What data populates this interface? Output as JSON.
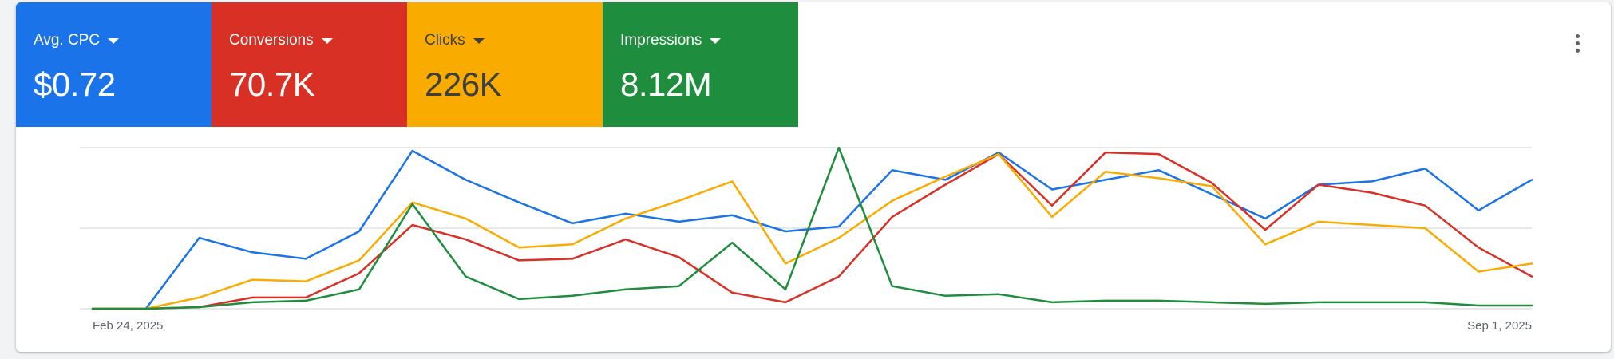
{
  "tiles": [
    {
      "label": "Avg. CPC",
      "value": "$0.72",
      "color": "#1a73e8"
    },
    {
      "label": "Conversions",
      "value": "70.7K",
      "color": "#d93025"
    },
    {
      "label": "Clicks",
      "value": "226K",
      "color": "#f9ab00"
    },
    {
      "label": "Impressions",
      "value": "8.12M",
      "color": "#1e8e3e"
    }
  ],
  "menu_icon": "more-vert-icon",
  "chart_data": {
    "type": "line",
    "x_start_label": "Feb 24, 2025",
    "x_end_label": "Sep 1, 2025",
    "ylim": [
      0,
      100
    ],
    "grid": true,
    "series": [
      {
        "metric": "Avg. CPC",
        "color": "#1a73e8",
        "values": [
          0,
          0,
          44,
          35,
          31,
          48,
          98,
          80,
          66,
          53,
          59,
          54,
          58,
          48,
          51,
          86,
          80,
          97,
          74,
          80,
          86,
          71,
          56,
          77,
          79,
          87,
          61,
          80
        ]
      },
      {
        "metric": "Conversions",
        "color": "#d93025",
        "values": [
          0,
          0,
          1,
          7,
          7,
          22,
          52,
          43,
          30,
          31,
          43,
          32,
          10,
          4,
          20,
          57,
          77,
          96,
          64,
          97,
          96,
          78,
          49,
          77,
          72,
          64,
          38,
          20
        ]
      },
      {
        "metric": "Clicks",
        "color": "#f9ab00",
        "values": [
          0,
          0,
          7,
          18,
          17,
          30,
          66,
          56,
          38,
          40,
          56,
          67,
          79,
          28,
          44,
          67,
          82,
          96,
          57,
          85,
          81,
          76,
          40,
          54,
          52,
          50,
          23,
          28
        ]
      },
      {
        "metric": "Impressions",
        "color": "#1e8e3e",
        "values": [
          0,
          0,
          1,
          4,
          5,
          12,
          65,
          20,
          6,
          8,
          12,
          14,
          41,
          12,
          100,
          14,
          8,
          9,
          4,
          5,
          5,
          4,
          3,
          4,
          4,
          4,
          2,
          2
        ]
      }
    ]
  }
}
